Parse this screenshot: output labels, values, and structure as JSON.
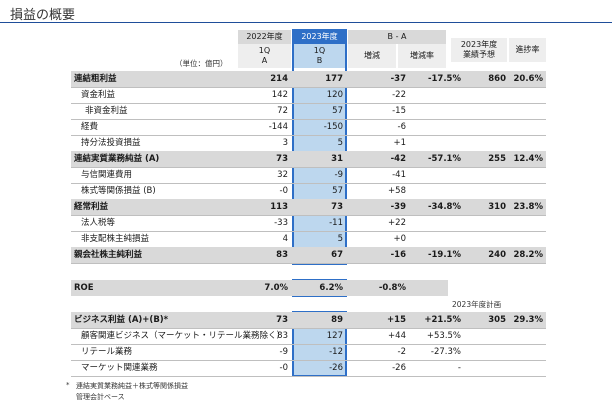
{
  "title": "損益の概要",
  "header": {
    "unit": "（単位：億円）",
    "col_2022": "2022年度",
    "col_2022_q": "1Q",
    "col_2022_letter": "A",
    "col_2023": "2023年度",
    "col_2023_q": "1Q",
    "col_2023_letter": "B",
    "col_ba": "B - A",
    "col_inc": "増減",
    "col_rate": "増減率",
    "col_fc_1": "2023年度",
    "col_fc_2": "業績予想",
    "col_progress": "進捗率"
  },
  "rows": [
    {
      "label": "連結粗利益",
      "a": "214",
      "b": "177",
      "inc": "-37",
      "rate": "-17.5%",
      "fc": "860",
      "pr": "20.6%",
      "bold": true
    },
    {
      "label": "資金利益",
      "a": "142",
      "b": "120",
      "inc": "-22",
      "rate": "",
      "fc": "",
      "pr": "",
      "indent": true
    },
    {
      "label": "非資金利益",
      "a": "72",
      "b": "57",
      "inc": "-15",
      "rate": "",
      "fc": "",
      "pr": "",
      "indent2": true
    },
    {
      "label": "経費",
      "a": "-144",
      "b": "-150",
      "inc": "-6",
      "rate": "",
      "fc": "",
      "pr": "",
      "indent": true
    },
    {
      "label": "持分法投資損益",
      "a": "3",
      "b": "5",
      "inc": "+1",
      "rate": "",
      "fc": "",
      "pr": "",
      "indent": true
    },
    {
      "label": "連結実質業務純益 (A)",
      "a": "73",
      "b": "31",
      "inc": "-42",
      "rate": "-57.1%",
      "fc": "255",
      "pr": "12.4%",
      "bold": true
    },
    {
      "label": "与信関連費用",
      "a": "32",
      "b": "-9",
      "inc": "-41",
      "rate": "",
      "fc": "",
      "pr": "",
      "indent": true
    },
    {
      "label": "株式等関係損益 (B)",
      "a": "-0",
      "b": "57",
      "inc": "+58",
      "rate": "",
      "fc": "",
      "pr": "",
      "indent": true
    },
    {
      "label": "経常利益",
      "a": "113",
      "b": "73",
      "inc": "-39",
      "rate": "-34.8%",
      "fc": "310",
      "pr": "23.8%",
      "bold": true
    },
    {
      "label": "法人税等",
      "a": "-33",
      "b": "-11",
      "inc": "+22",
      "rate": "",
      "fc": "",
      "pr": "",
      "indent": true
    },
    {
      "label": "非支配株主純損益",
      "a": "4",
      "b": "5",
      "inc": "+0",
      "rate": "",
      "fc": "",
      "pr": "",
      "indent": true
    },
    {
      "label": "親会社株主純利益",
      "a": "83",
      "b": "67",
      "inc": "-16",
      "rate": "-19.1%",
      "fc": "240",
      "pr": "28.2%",
      "bold": true
    }
  ],
  "roe": {
    "label": "ROE",
    "a": "7.0%",
    "b": "6.2%",
    "inc": "-0.8%",
    "rate": "-"
  },
  "plan_label": "2023年度計画",
  "biz_rows": [
    {
      "label": "ビジネス利益 (A)+(B)*",
      "a": "73",
      "b": "89",
      "inc": "+15",
      "rate": "+21.5%",
      "fc": "305",
      "pr": "29.3%",
      "bold": true
    },
    {
      "label": "顧客関連ビジネス（マーケット・リテール業務除く）",
      "a": "83",
      "b": "127",
      "inc": "+44",
      "rate": "+53.5%",
      "fc": "",
      "pr": "",
      "indent": true
    },
    {
      "label": "リテール業務",
      "a": "-9",
      "b": "-12",
      "inc": "-2",
      "rate": "-27.3%",
      "fc": "",
      "pr": "",
      "indent": true
    },
    {
      "label": "マーケット関連業務",
      "a": "-0",
      "b": "-26",
      "inc": "-26",
      "rate": "-",
      "fc": "",
      "pr": "",
      "indent": true
    }
  ],
  "notes": {
    "star": "*",
    "note1": "連結実質業務純益＋株式等関係損益",
    "note2": "管理会計ベース"
  }
}
